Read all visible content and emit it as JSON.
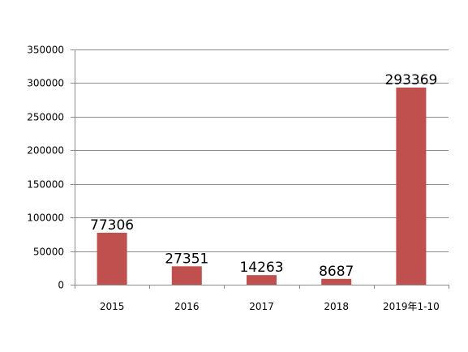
{
  "chart_data": {
    "type": "bar",
    "categories": [
      "2015",
      "2016",
      "2017",
      "2018",
      "2019年1-10"
    ],
    "values": [
      77306,
      27351,
      14263,
      8687,
      293369
    ],
    "data_labels": [
      "77306",
      "27351",
      "14263",
      "8687",
      "293369"
    ],
    "title": "",
    "xlabel": "",
    "ylabel": "",
    "ylim": [
      0,
      350000
    ],
    "yticks": [
      0,
      50000,
      100000,
      150000,
      200000,
      250000,
      300000,
      350000
    ],
    "ytick_labels": [
      "0",
      "50000",
      "100000",
      "150000",
      "200000",
      "250000",
      "300000",
      "350000"
    ],
    "grid": true,
    "legend": "none",
    "bar_color": "#c0504d"
  }
}
